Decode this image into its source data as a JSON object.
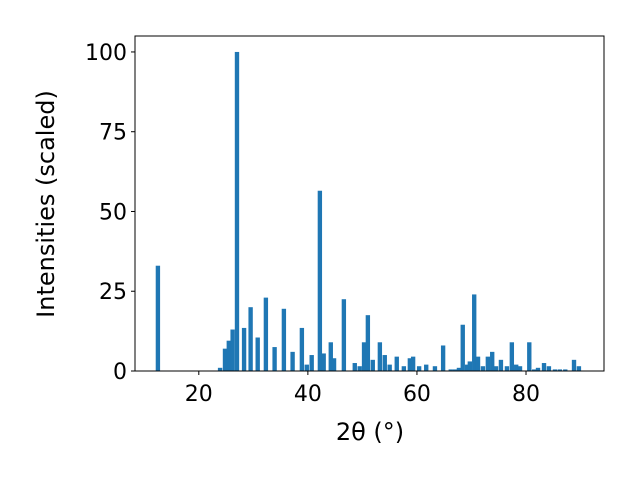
{
  "chart_data": {
    "type": "bar",
    "x_label": "2θ (°)",
    "y_label": "Intensities (scaled)",
    "color": "#1f77b4",
    "x": [
      12.5,
      23.9,
      24.8,
      25.5,
      26.2,
      27.0,
      28.3,
      29.5,
      30.8,
      32.3,
      33.9,
      35.6,
      37.2,
      38.9,
      39.8,
      40.7,
      42.2,
      42.9,
      44.2,
      44.8,
      46.6,
      48.6,
      49.5,
      50.3,
      51.0,
      51.9,
      53.2,
      54.1,
      55.0,
      56.3,
      57.6,
      58.7,
      59.3,
      60.4,
      61.7,
      63.3,
      64.8,
      66.2,
      67.0,
      67.7,
      68.4,
      69.2,
      69.7,
      70.5,
      71.2,
      72.1,
      73.0,
      73.8,
      74.5,
      75.4,
      76.5,
      77.4,
      78.2,
      78.9,
      80.6,
      81.5,
      82.2,
      83.3,
      84.2,
      85.3,
      86.2,
      87.2,
      88.8,
      89.7
    ],
    "values": [
      33,
      1,
      7,
      9.5,
      13,
      100,
      13.5,
      20,
      10.5,
      23,
      7.5,
      19.5,
      6,
      13.5,
      2,
      5,
      56.5,
      5.5,
      9,
      4,
      22.5,
      2.5,
      1.5,
      9,
      17.5,
      3.5,
      9,
      5,
      2,
      4.5,
      1.5,
      4,
      4.5,
      1.5,
      2,
      1.5,
      8,
      0.5,
      0.5,
      1,
      14.5,
      2,
      3,
      24,
      4.5,
      1.5,
      4.5,
      6,
      1.5,
      3.5,
      1.5,
      9,
      2,
      1.5,
      9,
      0.5,
      1,
      2.5,
      1.5,
      0.5,
      0.5,
      0.5,
      3.5,
      1.5
    ],
    "xlim": [
      8.3,
      94.3
    ],
    "ylim": [
      0,
      105
    ],
    "xticks": [
      20,
      40,
      60,
      80
    ],
    "yticks": [
      0,
      25,
      50,
      75,
      100
    ]
  }
}
